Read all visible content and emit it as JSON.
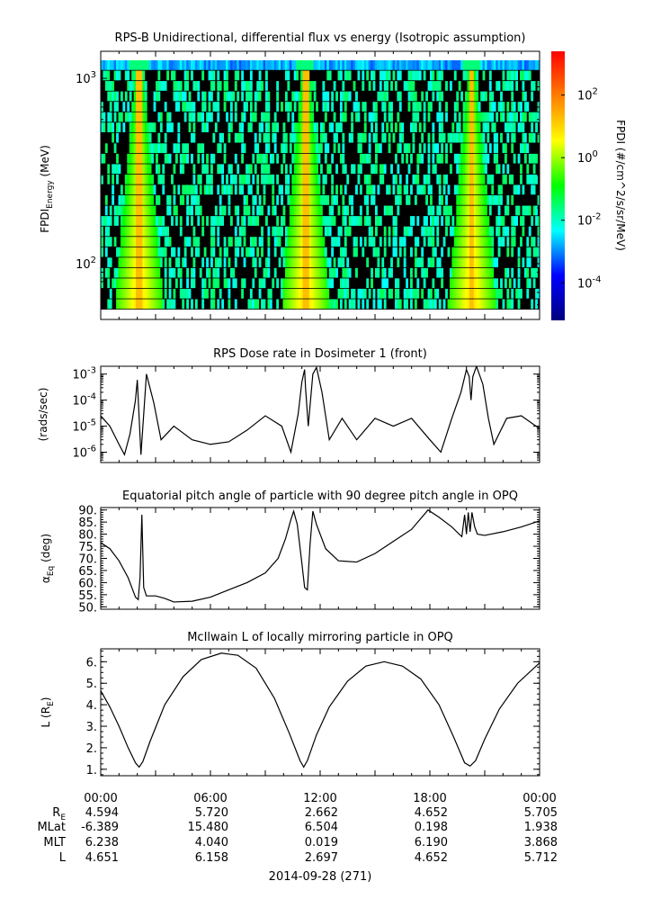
{
  "chart_data": [
    {
      "type": "heatmap",
      "title": "RPS-B  Unidirectional, differential flux vs energy (Isotropic assumption)",
      "ylabel_main": "FPDI",
      "ylabel_sub": "Energy",
      "ylabel_unit": "(MeV)",
      "yscale": "log",
      "ylim": [
        50,
        1400
      ],
      "yticks": [
        {
          "label_base": "10",
          "label_exp": "2",
          "value": 100
        },
        {
          "label_base": "10",
          "label_exp": "3",
          "value": 1000
        }
      ],
      "x_range_hours": [
        0,
        24
      ],
      "bright_bands_center_hours": [
        2.1,
        11.2,
        20.3
      ],
      "colorbar": {
        "label": "FPDI (#/cm^2/s/sr/MeV)",
        "scale": "log",
        "range_exp": [
          -5.2,
          3.4
        ],
        "ticks": [
          {
            "base": "10",
            "exp": "2",
            "value": 2
          },
          {
            "base": "10",
            "exp": "0",
            "value": 0
          },
          {
            "base": "10",
            "exp": "-2",
            "value": -2
          },
          {
            "base": "10",
            "exp": "-4",
            "value": -4
          }
        ],
        "colors": [
          "#00007f",
          "#0000ff",
          "#00ffff",
          "#00ff00",
          "#ffff00",
          "#ff7f00",
          "#ff0000"
        ]
      }
    },
    {
      "type": "line",
      "title": "RPS  Dose rate in Dosimeter 1 (front)",
      "ylabel": "(rads/sec)",
      "yscale": "log",
      "ylim": [
        4e-07,
        0.002
      ],
      "yticks": [
        {
          "base": "10",
          "exp": "-3",
          "value": -3
        },
        {
          "base": "10",
          "exp": "-4",
          "value": -4
        },
        {
          "base": "10",
          "exp": "-5",
          "value": -5
        },
        {
          "base": "10",
          "exp": "-6",
          "value": -6
        }
      ],
      "x_hours": [
        0,
        0.5,
        1.0,
        1.3,
        1.6,
        1.9,
        2.0,
        2.2,
        2.5,
        2.9,
        3.3,
        4.0,
        5.0,
        6.0,
        7.0,
        8.0,
        9.0,
        9.9,
        10.4,
        10.8,
        11.0,
        11.15,
        11.2,
        11.35,
        11.6,
        11.8,
        12.1,
        12.5,
        13.2,
        14.0,
        15.0,
        16.0,
        17.0,
        18.0,
        18.6,
        19.2,
        19.7,
        20.0,
        20.15,
        20.25,
        20.35,
        20.55,
        20.9,
        21.2,
        21.5,
        22.2,
        23.0,
        24.0
      ],
      "values": [
        2.5e-05,
        1e-05,
        2e-06,
        8e-07,
        5e-06,
        0.0001,
        0.0006,
        8e-07,
        0.001,
        8e-05,
        3e-06,
        1e-05,
        3e-06,
        2e-06,
        2.5e-06,
        7e-06,
        2.5e-05,
        1e-05,
        1e-06,
        3e-05,
        0.0005,
        0.0015,
        0.0003,
        1e-05,
        0.001,
        0.0018,
        0.0002,
        3e-06,
        2e-05,
        3e-06,
        2e-05,
        1e-05,
        2e-05,
        3e-06,
        1e-06,
        2e-05,
        0.0002,
        0.0015,
        0.0008,
        0.0001,
        0.0008,
        0.002,
        0.0004,
        2e-05,
        2e-06,
        2e-05,
        2.5e-05,
        8e-06
      ]
    },
    {
      "type": "line",
      "title": "Equatorial pitch angle of particle with 90 degree pitch angle in OPQ",
      "ylabel_main": "α",
      "ylabel_sub": "Eq",
      "ylabel_unit": "(deg)",
      "ylim": [
        49,
        91
      ],
      "yticks": [
        90,
        85,
        80,
        75,
        70,
        65,
        60,
        55,
        50
      ],
      "ytick_labels": [
        "90.",
        "85.",
        "80.",
        "75.",
        "70.",
        "65.",
        "60.",
        "55.",
        "50."
      ],
      "x_hours": [
        0,
        0.5,
        1.0,
        1.5,
        1.9,
        2.05,
        2.15,
        2.25,
        2.35,
        2.5,
        3.0,
        3.5,
        4.0,
        5.0,
        6.0,
        7.0,
        8.0,
        9.0,
        9.7,
        10.1,
        10.4,
        10.55,
        10.75,
        11.0,
        11.15,
        11.3,
        11.45,
        11.6,
        11.8,
        12.3,
        13.0,
        14.0,
        15.0,
        16.0,
        17.0,
        17.9,
        18.5,
        19.2,
        19.6,
        19.75,
        19.9,
        20.0,
        20.1,
        20.2,
        20.3,
        20.45,
        20.6,
        21.0,
        22.0,
        23.0,
        24.0
      ],
      "values": [
        76.5,
        74,
        69,
        62,
        54,
        53,
        62,
        88,
        58,
        54.5,
        54.5,
        53.5,
        52,
        52.3,
        54,
        57,
        60,
        64,
        70,
        78,
        86,
        89.5,
        84,
        68,
        58,
        57,
        76,
        89.5,
        84,
        74,
        69,
        68.5,
        72,
        77,
        82,
        90,
        87,
        83,
        80,
        79,
        88,
        80,
        89,
        81,
        89,
        83,
        80,
        79.5,
        81,
        83,
        85.5
      ]
    },
    {
      "type": "line",
      "title": "McIlwain L of locally mirroring particle in OPQ",
      "ylabel_main": "L (R",
      "ylabel_sub": "E",
      "ylabel_unit": ")",
      "ylim": [
        0.7,
        6.6
      ],
      "yticks": [
        6,
        5,
        4,
        3,
        2,
        1
      ],
      "ytick_labels": [
        "6.",
        "5.",
        "4.",
        "3.",
        "2.",
        "1."
      ],
      "x_hours": [
        0,
        0.5,
        1.0,
        1.5,
        1.9,
        2.1,
        2.3,
        2.7,
        3.5,
        4.5,
        5.5,
        6.6,
        7.5,
        8.5,
        9.5,
        10.3,
        10.9,
        11.1,
        11.3,
        11.8,
        12.5,
        13.5,
        14.5,
        15.5,
        16.5,
        17.5,
        18.5,
        19.3,
        19.9,
        20.2,
        20.5,
        21.0,
        21.8,
        22.8,
        24.0
      ],
      "values": [
        4.65,
        3.9,
        3.0,
        2.0,
        1.3,
        1.1,
        1.35,
        2.3,
        4.0,
        5.3,
        6.1,
        6.4,
        6.3,
        5.7,
        4.3,
        2.7,
        1.4,
        1.1,
        1.4,
        2.6,
        3.9,
        5.1,
        5.8,
        6.0,
        5.8,
        5.2,
        4.0,
        2.5,
        1.3,
        1.15,
        1.4,
        2.4,
        3.8,
        5.0,
        5.95
      ]
    }
  ],
  "xaxis": {
    "tick_labels": [
      "00:00",
      "06:00",
      "12:00",
      "18:00",
      "00:00"
    ],
    "tick_hours": [
      0,
      6,
      12,
      18,
      24
    ],
    "row_labels": [
      {
        "base": "R",
        "sub": "E"
      },
      {
        "base": "MLat",
        "sub": ""
      },
      {
        "base": "MLT",
        "sub": ""
      },
      {
        "base": "L",
        "sub": ""
      }
    ],
    "rows": [
      [
        "4.594",
        "5.720",
        "2.662",
        "4.652",
        "5.705"
      ],
      [
        "-6.389",
        "15.480",
        "6.504",
        "0.198",
        "1.938"
      ],
      [
        "6.238",
        "4.040",
        "0.019",
        "6.190",
        "3.868"
      ],
      [
        "4.651",
        "6.158",
        "2.697",
        "4.652",
        "5.712"
      ]
    ],
    "date_label": "2014-09-28 (271)"
  }
}
